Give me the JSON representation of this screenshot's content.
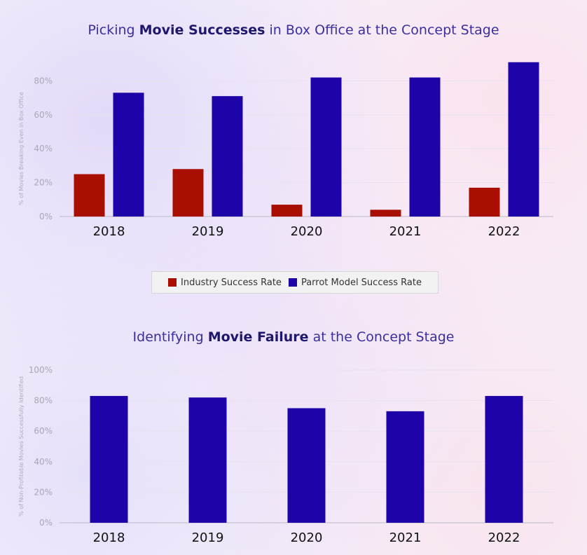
{
  "chart_data": [
    {
      "type": "bar",
      "title_parts": [
        "Picking ",
        "Movie Successes",
        " in Box Office at the Concept Stage"
      ],
      "ylabel": "% of Movies Breaking Even in Box Office",
      "categories": [
        "2018",
        "2019",
        "2020",
        "2021",
        "2022"
      ],
      "ylim": [
        0,
        90
      ],
      "yticks": [
        "0%",
        "20%",
        "40%",
        "60%",
        "80%"
      ],
      "grid": true,
      "legend": "bottom",
      "series": [
        {
          "name": "Industry Success Rate",
          "color": "#a90f00",
          "values": [
            25,
            28,
            7,
            4,
            17
          ]
        },
        {
          "name": "Parrot Model Success Rate",
          "color": "#1e03a8",
          "values": [
            73,
            71,
            82,
            82,
            91
          ]
        }
      ]
    },
    {
      "type": "bar",
      "title_parts": [
        "Identifying ",
        "Movie Failure",
        " at the Concept Stage"
      ],
      "ylabel": "% of Non-Profitable Movies Successfully Identified",
      "categories": [
        "2018",
        "2019",
        "2020",
        "2021",
        "2022"
      ],
      "ylim": [
        0,
        100
      ],
      "yticks": [
        "0%",
        "20%",
        "40%",
        "60%",
        "80%",
        "100%"
      ],
      "grid": true,
      "series": [
        {
          "name": "",
          "color": "#1e03a8",
          "values": [
            83,
            82,
            75,
            73,
            83
          ]
        }
      ]
    }
  ]
}
